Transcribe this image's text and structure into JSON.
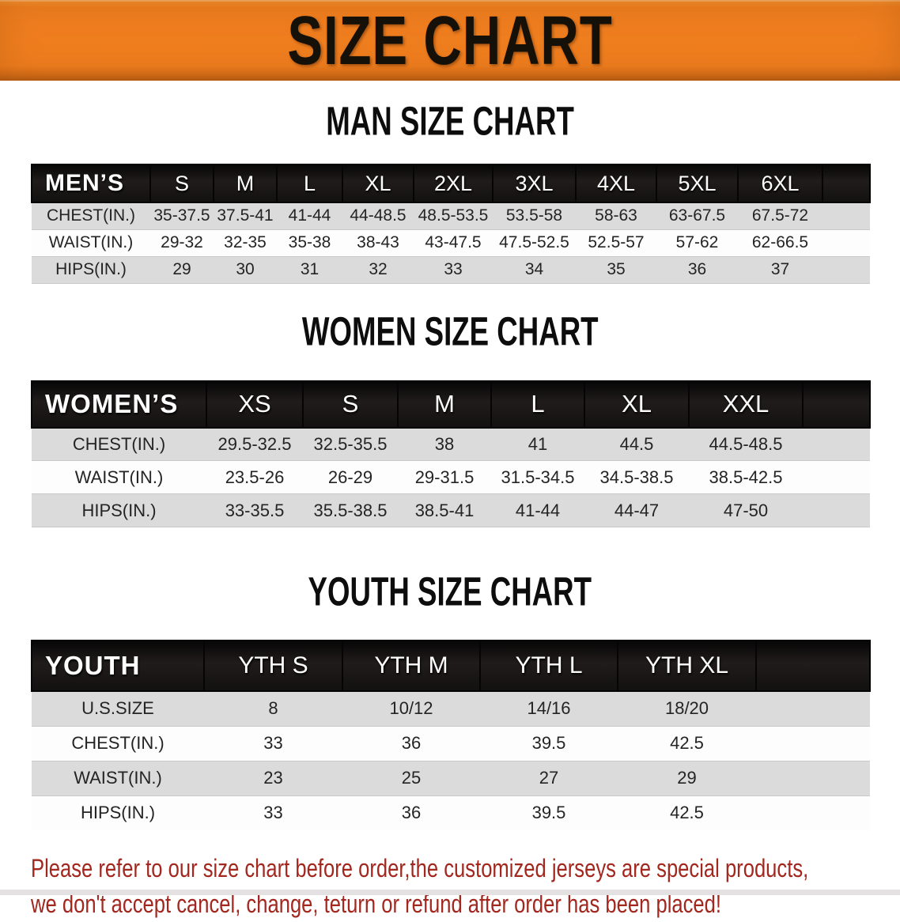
{
  "banner": {
    "title": "SIZE CHART"
  },
  "colors": {
    "banner_bg": "#ee7d1e",
    "banner_text": "#161108",
    "header_bar_bg": "#141110",
    "header_bar_text": "#ffffff",
    "row_stripe_gray": "#dbdbdb",
    "row_stripe_white": "#fdfdfd",
    "footer_text": "#a2271f"
  },
  "tables": [
    {
      "id": "men",
      "heading": "MAN SIZE CHART",
      "corner_label": "MEN’S",
      "columns": [
        "S",
        "M",
        "L",
        "XL",
        "2XL",
        "3XL",
        "4XL",
        "5XL",
        "6XL"
      ],
      "rows": [
        {
          "label": "CHEST(IN.)",
          "values": [
            "35-37.5",
            "37.5-41",
            "41-44",
            "44-48.5",
            "48.5-53.5",
            "53.5-58",
            "58-63",
            "63-67.5",
            "67.5-72"
          ]
        },
        {
          "label": "WAIST(IN.)",
          "values": [
            "29-32",
            "32-35",
            "35-38",
            "38-43",
            "43-47.5",
            "47.5-52.5",
            "52.5-57",
            "57-62",
            "62-66.5"
          ]
        },
        {
          "label": "HIPS(IN.)",
          "values": [
            "29",
            "30",
            "31",
            "32",
            "33",
            "34",
            "35",
            "36",
            "37"
          ]
        }
      ]
    },
    {
      "id": "women",
      "heading": "WOMEN SIZE CHART",
      "corner_label": "WOMEN’S",
      "columns": [
        "XS",
        "S",
        "M",
        "L",
        "XL",
        "XXL"
      ],
      "rows": [
        {
          "label": "CHEST(IN.)",
          "values": [
            "29.5-32.5",
            "32.5-35.5",
            "38",
            "41",
            "44.5",
            "44.5-48.5"
          ]
        },
        {
          "label": "WAIST(IN.)",
          "values": [
            "23.5-26",
            "26-29",
            "29-31.5",
            "31.5-34.5",
            "34.5-38.5",
            "38.5-42.5"
          ]
        },
        {
          "label": "HIPS(IN.)",
          "values": [
            "33-35.5",
            "35.5-38.5",
            "38.5-41",
            "41-44",
            "44-47",
            "47-50"
          ]
        }
      ]
    },
    {
      "id": "youth",
      "heading": "YOUTH SIZE CHART",
      "corner_label": "YOUTH",
      "columns": [
        "YTH S",
        "YTH M",
        "YTH L",
        "YTH XL"
      ],
      "rows": [
        {
          "label": "U.S.SIZE",
          "values": [
            "8",
            "10/12",
            "14/16",
            "18/20"
          ]
        },
        {
          "label": "CHEST(IN.)",
          "values": [
            "33",
            "36",
            "39.5",
            "42.5"
          ]
        },
        {
          "label": "WAIST(IN.)",
          "values": [
            "23",
            "25",
            "27",
            "29"
          ]
        },
        {
          "label": "HIPS(IN.)",
          "values": [
            "33",
            "36",
            "39.5",
            "42.5"
          ]
        }
      ]
    }
  ],
  "footer": {
    "line1": "Please refer to our size chart before order,the customized jerseys are special products,",
    "line2": "we don't accept cancel, change, teturn or refund after order has been placed!"
  }
}
